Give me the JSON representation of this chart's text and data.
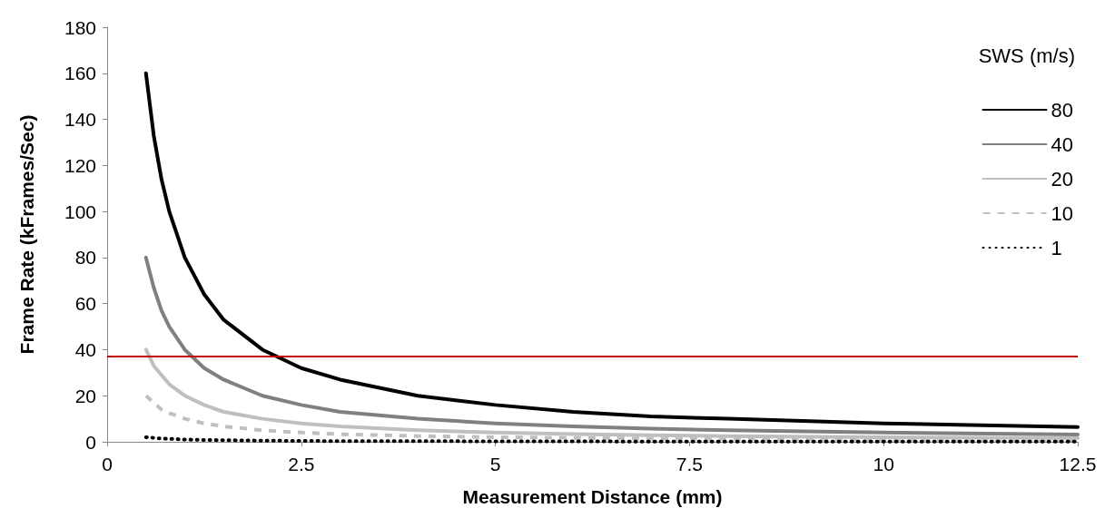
{
  "chart_data": {
    "type": "line",
    "xlabel": "Measurement Distance (mm)",
    "ylabel": "Frame Rate (kFrames/Sec)",
    "legend_title": "SWS (m/s)",
    "x": [
      0.5,
      0.6,
      0.7,
      0.8,
      1,
      1.25,
      1.5,
      2,
      2.5,
      3,
      4,
      5,
      6,
      7,
      8,
      10,
      12.5
    ],
    "series": [
      {
        "name": "80",
        "color": "#000000",
        "line_style": "solid",
        "values": [
          160,
          133,
          114,
          100,
          80,
          64,
          53,
          40,
          32,
          27,
          20,
          16,
          13,
          11,
          10,
          8,
          6.4
        ]
      },
      {
        "name": "40",
        "color": "#808080",
        "line_style": "solid",
        "values": [
          80,
          67,
          57,
          50,
          40,
          32,
          27,
          20,
          16,
          13,
          10,
          8,
          6.7,
          5.7,
          5,
          4,
          3.2
        ]
      },
      {
        "name": "20",
        "color": "#bfbfbf",
        "line_style": "solid",
        "values": [
          40,
          33,
          29,
          25,
          20,
          16,
          13,
          10,
          8,
          6.7,
          5,
          4,
          3.3,
          2.9,
          2.5,
          2,
          1.6
        ]
      },
      {
        "name": "10",
        "color": "#bfbfbf",
        "line_style": "dashed",
        "values": [
          20,
          17,
          14,
          12.5,
          10,
          8,
          6.7,
          5,
          4,
          3.3,
          2.5,
          2,
          1.7,
          1.4,
          1.3,
          1,
          0.8
        ]
      },
      {
        "name": "1",
        "color": "#000000",
        "line_style": "dotted",
        "values": [
          2,
          1.7,
          1.4,
          1.3,
          1,
          0.8,
          0.7,
          0.5,
          0.4,
          0.3,
          0.3,
          0.2,
          0.2,
          0.1,
          0.1,
          0.1,
          0.1
        ]
      }
    ],
    "ref_lines": [
      {
        "axis": "y",
        "value": 37,
        "color": "#c00000"
      }
    ],
    "xlim": [
      0,
      12.5
    ],
    "xticks": [
      0,
      2.5,
      5,
      7.5,
      10,
      12.5
    ],
    "ylim": [
      0,
      180
    ],
    "yticks": [
      0,
      20,
      40,
      60,
      80,
      100,
      120,
      140,
      160,
      180
    ],
    "grid": false,
    "legend": "top right",
    "marker": "none"
  }
}
